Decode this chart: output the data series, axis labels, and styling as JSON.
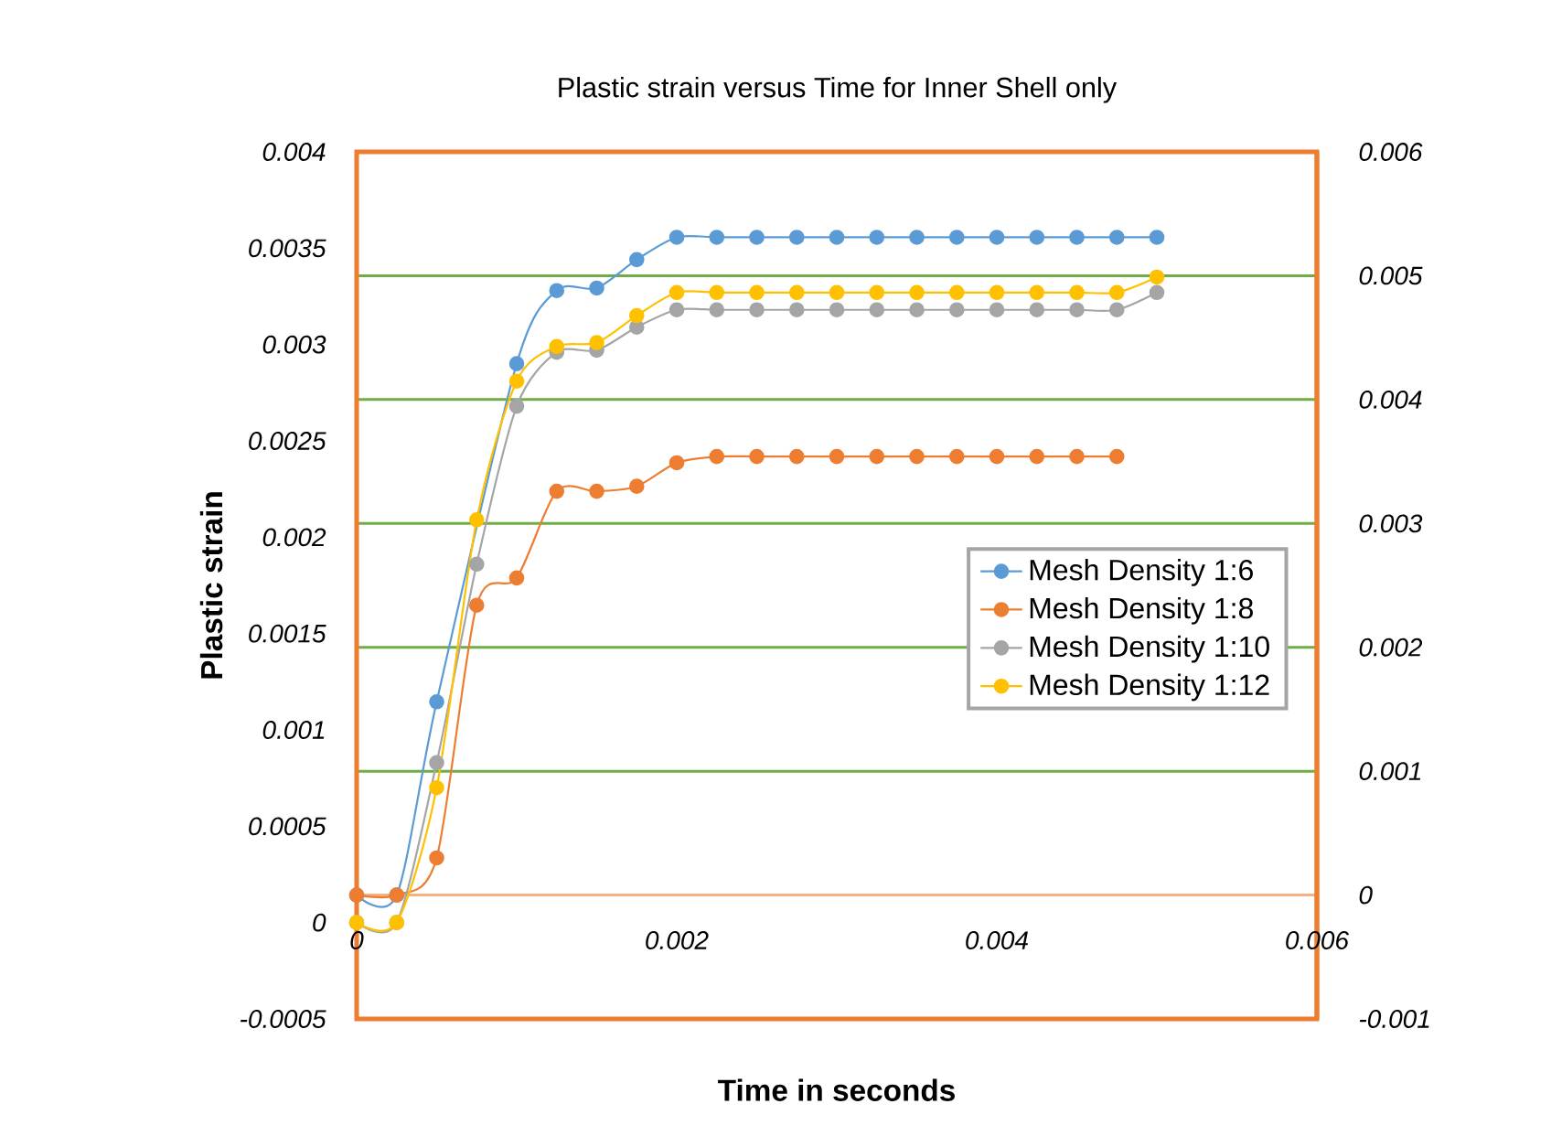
{
  "chart_data": {
    "type": "line",
    "title": "Plastic strain versus Time for Inner Shell only",
    "xlabel": "Time in seconds",
    "ylabel": "Plastic strain",
    "x": [
      0,
      0.00025,
      0.0005,
      0.00075,
      0.001,
      0.00125,
      0.0015,
      0.00175,
      0.002,
      0.00225,
      0.0025,
      0.00275,
      0.003,
      0.00325,
      0.0035,
      0.00375,
      0.004,
      0.00425,
      0.0045,
      0.00475,
      0.005
    ],
    "series": [
      {
        "name": "Mesh Density 1:6",
        "color": "#5b9bd5",
        "axis": "y2",
        "values": [
          0,
          0,
          0.00156,
          null,
          0.00429,
          0.00488,
          0.0049,
          0.00513,
          0.00531,
          0.00531,
          0.00531,
          0.00531,
          0.00531,
          0.00531,
          0.00531,
          0.00531,
          0.00531,
          0.00531,
          0.00531,
          0.00531,
          0.00531
        ]
      },
      {
        "name": "Mesh Density 1:8",
        "color": "#ed7d31",
        "axis": "y2",
        "values": [
          0,
          0,
          0.0003,
          0.00234,
          0.00256,
          0.00326,
          0.00326,
          0.0033,
          0.00349,
          0.00354,
          0.00354,
          0.00354,
          0.00354,
          0.00354,
          0.00354,
          0.00354,
          0.00354,
          0.00354,
          0.00354,
          0.00354,
          null
        ]
      },
      {
        "name": "Mesh Density 1:10",
        "color": "#a5a5a5",
        "axis": "y",
        "values": [
          0,
          0,
          0.00083,
          0.00186,
          0.00268,
          0.00296,
          0.00297,
          0.00309,
          0.00318,
          0.00318,
          0.00318,
          0.00318,
          0.00318,
          0.00318,
          0.00318,
          0.00318,
          0.00318,
          0.00318,
          0.00318,
          0.00318,
          0.00327
        ]
      },
      {
        "name": "Mesh Density 1:12",
        "color": "#ffc000",
        "axis": "y",
        "values": [
          0,
          0,
          0.0007,
          0.00209,
          0.00281,
          0.00299,
          0.00301,
          0.00315,
          0.00327,
          0.00327,
          0.00327,
          0.00327,
          0.00327,
          0.00327,
          0.00327,
          0.00327,
          0.00327,
          0.00327,
          0.00327,
          0.00327,
          0.00335
        ]
      }
    ],
    "xlim": [
      0,
      0.006
    ],
    "xticks": [
      0,
      0.002,
      0.004,
      0.006
    ],
    "ylim": [
      -0.0005,
      0.004
    ],
    "yticks": [
      -0.0005,
      0,
      0.0005,
      0.001,
      0.0015,
      0.002,
      0.0025,
      0.003,
      0.0035,
      0.004
    ],
    "y2lim": [
      -0.001,
      0.006
    ],
    "y2ticks": [
      -0.001,
      0,
      0.001,
      0.002,
      0.003,
      0.004,
      0.005,
      0.006
    ],
    "grid": "y2",
    "legend": "right",
    "marker": "circle"
  }
}
